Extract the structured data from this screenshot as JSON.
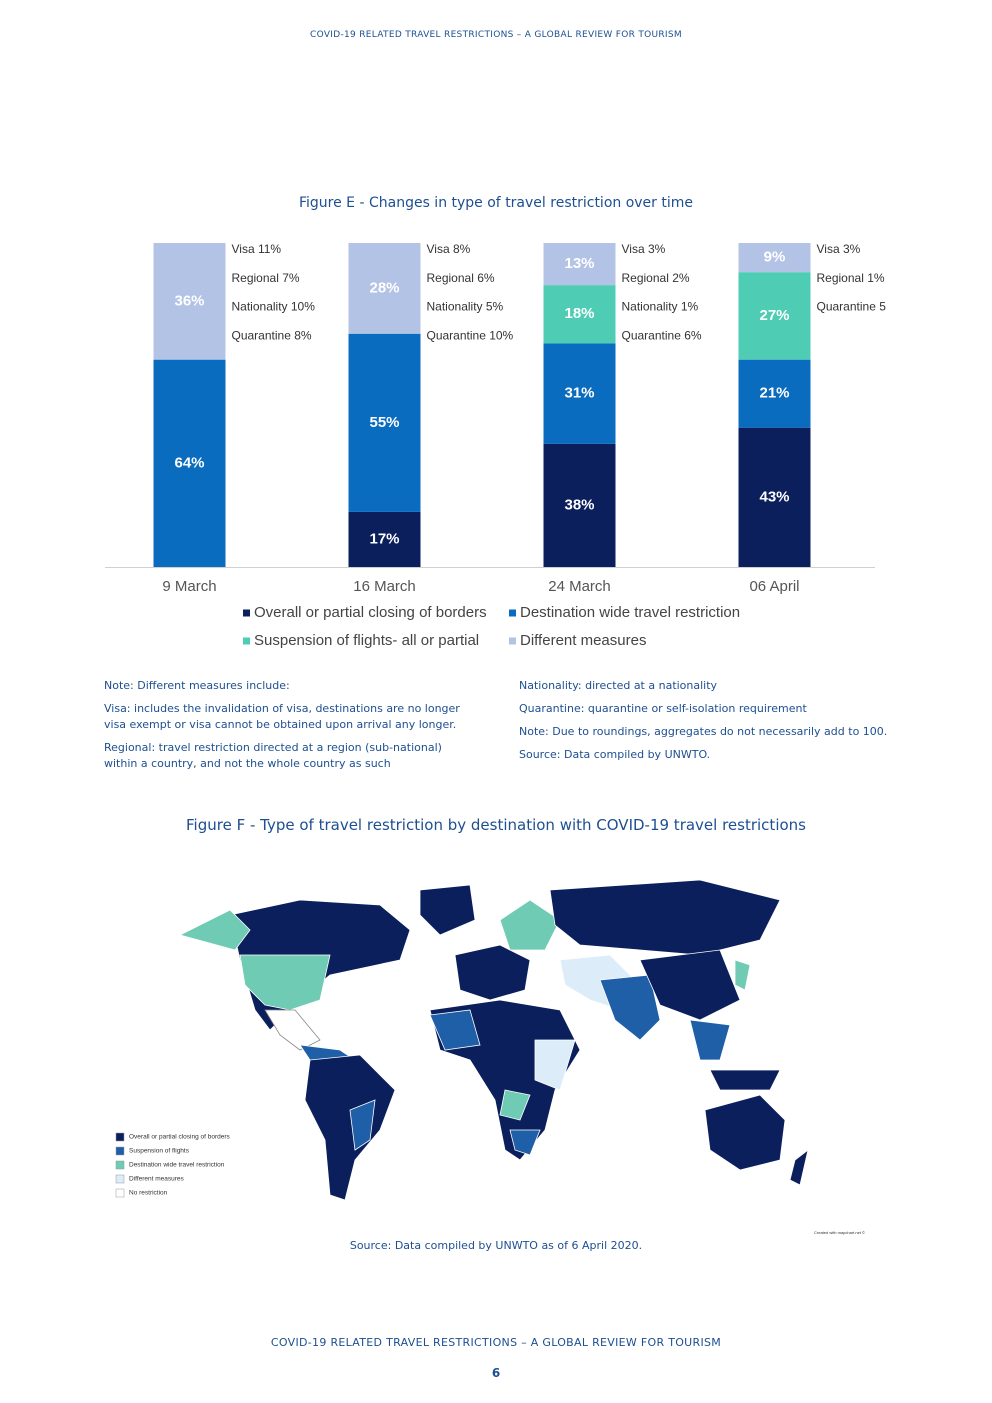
{
  "header": {
    "running_title": "COVID-19 RELATED TRAVEL RESTRICTIONS – A GLOBAL REVIEW FOR TOURISM"
  },
  "chart_data": {
    "type": "stacked_bar",
    "title": "Figure E - Changes in type of travel restriction over time",
    "categories": [
      "9 March",
      "16 March",
      "24 March",
      "06 April"
    ],
    "series": [
      {
        "name": "Overall or partial closing of borders",
        "color": "#0b1f5c",
        "values": [
          null,
          17,
          38,
          43
        ],
        "value_labels": [
          null,
          "17%",
          "38%",
          "43%"
        ]
      },
      {
        "name": "Destination wide travel restriction",
        "color": "#0a6cbf",
        "values": [
          64,
          55,
          31,
          21
        ],
        "value_labels": [
          "64%",
          "55%",
          "31%",
          "21%"
        ]
      },
      {
        "name": "Suspension of flights- all or partial",
        "color": "#4ecdb4",
        "values": [
          null,
          null,
          18,
          27
        ],
        "value_labels": [
          null,
          null,
          "18%",
          "27%"
        ]
      },
      {
        "name": "Different measures",
        "color": "#b3c3e6",
        "values": [
          36,
          28,
          13,
          9
        ],
        "value_labels": [
          "36%",
          "28%",
          "13%",
          "9%"
        ]
      }
    ],
    "annotations": [
      [
        "Visa 11%",
        "Regional 7%",
        "Nationality 10%",
        "Quarantine 8%"
      ],
      [
        "Visa 8%",
        "Regional 6%",
        "Nationality 5%",
        "Quarantine 10%"
      ],
      [
        "Visa 3%",
        "Regional 2%",
        "Nationality 1%",
        "Quarantine 6%"
      ],
      [
        "Visa 3%",
        "Regional 1%",
        "Quarantine 5"
      ]
    ],
    "ylim": [
      0,
      100
    ],
    "legend": "bottom"
  },
  "notes": {
    "left": [
      "Note: Different measures include:",
      "Visa: includes the invalidation of visa, destinations are no longer visa exempt or visa cannot be obtained upon arrival any longer.",
      "Regional: travel restriction directed at a region (sub-national) within a country, and not the whole country as such"
    ],
    "right": [
      "Nationality: directed at a nationality",
      "Quarantine: quarantine or self-isolation requirement",
      "Note: Due to roundings, aggregates do not necessarily add to 100.",
      "Source: Data compiled by UNWTO."
    ]
  },
  "map": {
    "title": "Figure F - Type of travel restriction by destination with COVID-19 travel restrictions",
    "legend": [
      {
        "label": "Overall or partial closing of borders",
        "color": "#0b1f5c"
      },
      {
        "label": "Suspension of flights",
        "color": "#1f5fa8"
      },
      {
        "label": "Destination wide travel restriction",
        "color": "#6fcbb3"
      },
      {
        "label": "Different measures",
        "color": "#dcecf8"
      },
      {
        "label": "No restriction",
        "color": "#ffffff"
      }
    ],
    "credit": "Created with mapchart.net ©",
    "source": "Source: Data compiled by UNWTO as of 6 April 2020."
  },
  "footer": {
    "running_title": "COVID-19 RELATED TRAVEL RESTRICTIONS – A GLOBAL REVIEW FOR TOURISM",
    "page_number": "6"
  }
}
